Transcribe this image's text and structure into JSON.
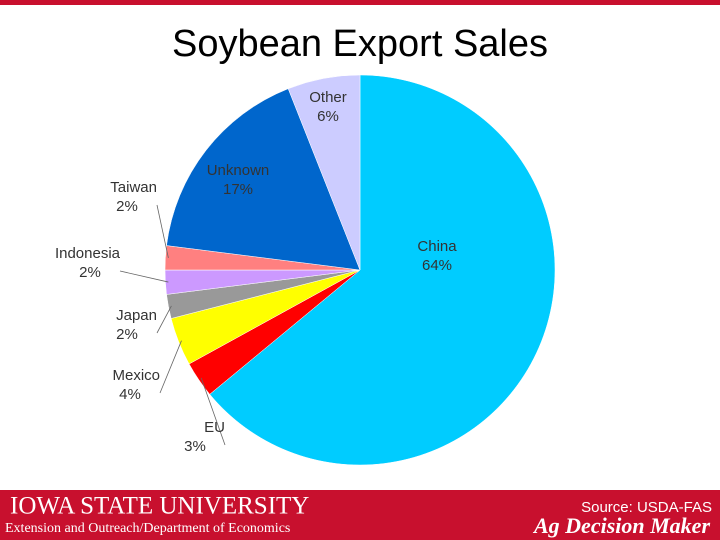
{
  "chart_data": {
    "type": "pie",
    "title": "Soybean Export Sales",
    "categories": [
      "China",
      "EU",
      "Mexico",
      "Japan",
      "Indonesia",
      "Taiwan",
      "Unknown",
      "Other"
    ],
    "values": [
      64,
      3,
      4,
      2,
      2,
      2,
      17,
      6
    ],
    "value_labels": [
      "64%",
      "3%",
      "4%",
      "2%",
      "2%",
      "2%",
      "17%",
      "6%"
    ],
    "colors": [
      "#00ccff",
      "#ff0000",
      "#ffff00",
      "#999999",
      "#cc99ff",
      "#ff8080",
      "#0066cc",
      "#ccccff"
    ]
  },
  "footer": {
    "university": "IOWA STATE UNIVERSITY",
    "department": "Extension and Outreach/Department of Economics",
    "source": "Source: USDA-FAS",
    "brand": "Ag Decision Maker"
  }
}
